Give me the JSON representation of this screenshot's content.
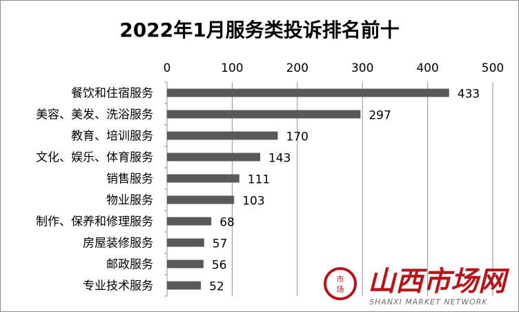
{
  "chart_data": {
    "type": "bar",
    "orientation": "horizontal",
    "title": "2022年1月服务类投诉排名前十",
    "categories": [
      "餐饮和住宿服务",
      "美容、美发、洗浴服务",
      "教育、培训服务",
      "文化、娱乐、体育服务",
      "销售服务",
      "物业服务",
      "制作、保养和修理服务",
      "房屋装修服务",
      "邮政服务",
      "专业技术服务"
    ],
    "values": [
      433,
      297,
      170,
      143,
      111,
      103,
      68,
      57,
      56,
      52
    ],
    "value_axis": {
      "min": 0,
      "max": 500,
      "ticks": [
        0,
        100,
        200,
        300,
        400,
        500
      ],
      "position": "top"
    },
    "grid": true,
    "legend": "none",
    "bar_color": "#595959"
  },
  "watermark": {
    "seal_text": [
      "市",
      "场"
    ],
    "name": "山西市场网",
    "subtitle": "SHANXI MARKET NETWORK",
    "color": "#b5161b"
  }
}
